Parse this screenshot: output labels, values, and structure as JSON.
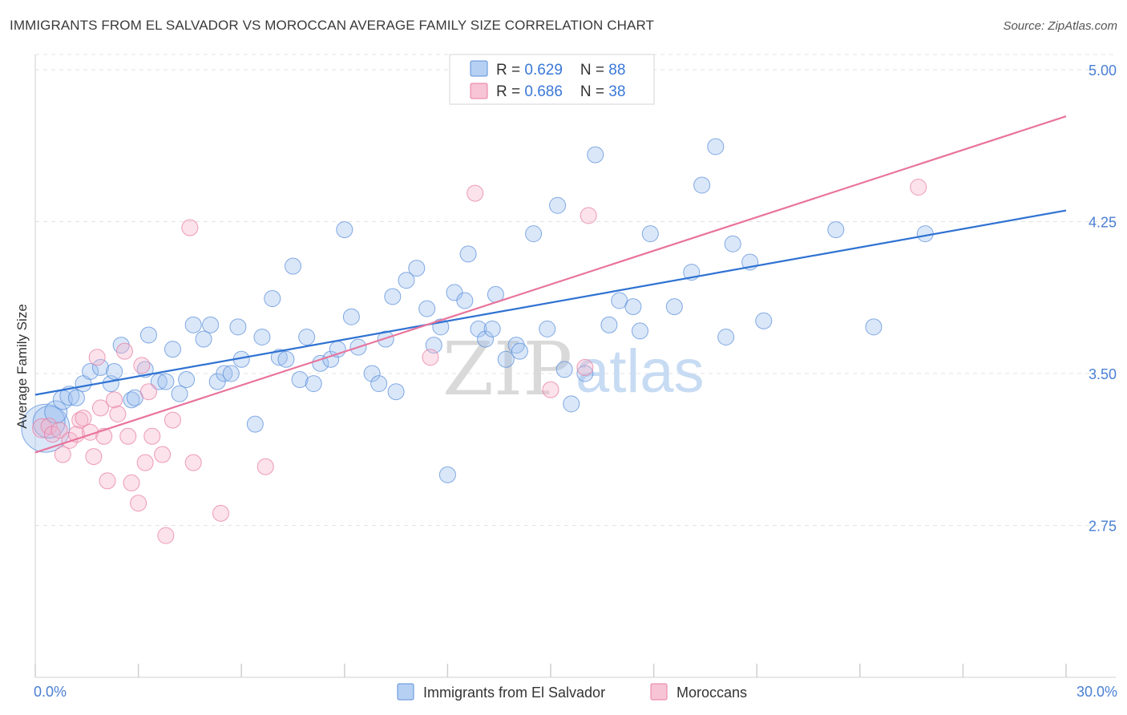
{
  "title": "IMMIGRANTS FROM EL SALVADOR VS MOROCCAN AVERAGE FAMILY SIZE CORRELATION CHART",
  "source": "Source: ZipAtlas.com",
  "watermark": {
    "zip": "ZIP",
    "atlas": "atlas"
  },
  "colors": {
    "blue": "#5b8fd9",
    "pink": "#e87ca2",
    "blue_line": "#2f72d2",
    "pink_line": "#e8749c",
    "grid": "#e3e3e3"
  },
  "legend": {
    "rows": [
      {
        "series": "blue",
        "r_label": "R = ",
        "r_value": "0.629",
        "n_label": "N = ",
        "n_value": "88"
      },
      {
        "series": "pink",
        "r_label": "R = ",
        "r_value": "0.686",
        "n_label": "N = ",
        "n_value": "38"
      }
    ]
  },
  "chart_data": {
    "type": "scatter",
    "title": "IMMIGRANTS FROM EL SALVADOR VS MOROCCAN AVERAGE FAMILY SIZE CORRELATION CHART",
    "xlabel": "",
    "ylabel": "Average Family Size",
    "xlim": [
      0,
      30
    ],
    "ylim": [
      2.0,
      5.075
    ],
    "x_tick_labels": [
      "0.0%",
      "30.0%"
    ],
    "y_ticks": [
      2.75,
      3.5,
      4.25,
      5.0
    ],
    "y_tick_labels": [
      "2.75",
      "3.50",
      "4.25",
      "5.00"
    ],
    "grid": true,
    "legend_position": "top-center",
    "series": [
      {
        "name": "Immigrants from El Salvador",
        "color": "#5b8fd9",
        "trend": {
          "x": [
            0,
            30
          ],
          "y": [
            3.395,
            4.305
          ]
        },
        "points": [
          [
            0.3,
            3.23,
            30
          ],
          [
            0.4,
            3.26,
            20
          ],
          [
            0.6,
            3.31,
            14
          ],
          [
            0.8,
            3.37,
            12
          ],
          [
            1.0,
            3.39,
            12
          ],
          [
            1.2,
            3.38,
            10
          ],
          [
            1.4,
            3.45,
            10
          ],
          [
            1.6,
            3.51,
            10
          ],
          [
            1.9,
            3.53,
            10
          ],
          [
            2.2,
            3.45,
            10
          ],
          [
            2.3,
            3.51,
            10
          ],
          [
            2.5,
            3.64,
            10
          ],
          [
            2.8,
            3.37,
            10
          ],
          [
            2.9,
            3.38,
            10
          ],
          [
            3.2,
            3.52,
            10
          ],
          [
            3.3,
            3.69,
            10
          ],
          [
            3.6,
            3.46,
            10
          ],
          [
            3.8,
            3.46,
            10
          ],
          [
            4.0,
            3.62,
            10
          ],
          [
            4.2,
            3.4,
            10
          ],
          [
            4.4,
            3.47,
            10
          ],
          [
            4.6,
            3.74,
            10
          ],
          [
            4.9,
            3.67,
            10
          ],
          [
            5.1,
            3.74,
            10
          ],
          [
            5.3,
            3.46,
            10
          ],
          [
            5.5,
            3.5,
            10
          ],
          [
            5.7,
            3.5,
            10
          ],
          [
            5.9,
            3.73,
            10
          ],
          [
            6.0,
            3.57,
            10
          ],
          [
            6.4,
            3.25,
            10
          ],
          [
            6.6,
            3.68,
            10
          ],
          [
            6.9,
            3.87,
            10
          ],
          [
            7.1,
            3.58,
            10
          ],
          [
            7.3,
            3.57,
            10
          ],
          [
            7.5,
            4.03,
            10
          ],
          [
            7.7,
            3.47,
            10
          ],
          [
            7.9,
            3.68,
            10
          ],
          [
            8.1,
            3.45,
            10
          ],
          [
            8.3,
            3.55,
            10
          ],
          [
            8.6,
            3.57,
            10
          ],
          [
            8.8,
            3.62,
            10
          ],
          [
            9.0,
            4.21,
            10
          ],
          [
            9.2,
            3.78,
            10
          ],
          [
            9.4,
            3.63,
            10
          ],
          [
            9.8,
            3.5,
            10
          ],
          [
            10.0,
            3.45,
            10
          ],
          [
            10.2,
            3.67,
            10
          ],
          [
            10.4,
            3.88,
            10
          ],
          [
            10.5,
            3.41,
            10
          ],
          [
            10.8,
            3.96,
            10
          ],
          [
            11.1,
            4.02,
            10
          ],
          [
            11.4,
            3.82,
            10
          ],
          [
            11.6,
            3.64,
            10
          ],
          [
            11.8,
            3.73,
            10
          ],
          [
            12.0,
            3.0,
            10
          ],
          [
            12.2,
            3.9,
            10
          ],
          [
            12.5,
            3.86,
            10
          ],
          [
            12.6,
            4.09,
            10
          ],
          [
            12.9,
            3.72,
            10
          ],
          [
            13.1,
            3.67,
            10
          ],
          [
            13.3,
            3.72,
            10
          ],
          [
            13.4,
            3.89,
            10
          ],
          [
            13.7,
            3.57,
            10
          ],
          [
            14.0,
            3.64,
            10
          ],
          [
            14.1,
            3.61,
            10
          ],
          [
            14.5,
            4.19,
            10
          ],
          [
            14.9,
            3.72,
            10
          ],
          [
            15.2,
            4.33,
            10
          ],
          [
            15.4,
            3.52,
            10
          ],
          [
            15.6,
            3.35,
            10
          ],
          [
            16.0,
            3.5,
            10
          ],
          [
            16.3,
            4.58,
            10
          ],
          [
            16.7,
            3.74,
            10
          ],
          [
            17.0,
            3.86,
            10
          ],
          [
            17.4,
            3.83,
            10
          ],
          [
            17.6,
            3.71,
            10
          ],
          [
            17.9,
            4.19,
            10
          ],
          [
            18.6,
            3.83,
            10
          ],
          [
            19.1,
            4.0,
            10
          ],
          [
            19.4,
            4.43,
            10
          ],
          [
            19.8,
            4.62,
            10
          ],
          [
            20.1,
            3.68,
            10
          ],
          [
            20.3,
            4.14,
            10
          ],
          [
            20.8,
            4.05,
            10
          ],
          [
            21.2,
            3.76,
            10
          ],
          [
            23.3,
            4.21,
            10
          ],
          [
            24.4,
            3.73,
            10
          ],
          [
            25.9,
            4.19,
            10
          ]
        ]
      },
      {
        "name": "Moroccans",
        "color": "#e87ca2",
        "trend": {
          "x": [
            0,
            30
          ],
          "y": [
            3.11,
            4.77
          ]
        },
        "points": [
          [
            0.2,
            3.23,
            12
          ],
          [
            0.4,
            3.24,
            10
          ],
          [
            0.5,
            3.2,
            10
          ],
          [
            0.7,
            3.22,
            10
          ],
          [
            0.8,
            3.1,
            10
          ],
          [
            1.0,
            3.17,
            10
          ],
          [
            1.2,
            3.2,
            10
          ],
          [
            1.3,
            3.27,
            10
          ],
          [
            1.4,
            3.28,
            10
          ],
          [
            1.6,
            3.21,
            10
          ],
          [
            1.7,
            3.09,
            10
          ],
          [
            1.8,
            3.58,
            10
          ],
          [
            1.9,
            3.33,
            10
          ],
          [
            2.0,
            3.19,
            10
          ],
          [
            2.1,
            2.97,
            10
          ],
          [
            2.3,
            3.37,
            10
          ],
          [
            2.4,
            3.3,
            10
          ],
          [
            2.6,
            3.61,
            10
          ],
          [
            2.7,
            3.19,
            10
          ],
          [
            2.8,
            2.96,
            10
          ],
          [
            3.0,
            2.86,
            10
          ],
          [
            3.2,
            3.06,
            10
          ],
          [
            3.3,
            3.41,
            10
          ],
          [
            3.4,
            3.19,
            10
          ],
          [
            3.7,
            3.1,
            10
          ],
          [
            3.8,
            2.7,
            10
          ],
          [
            4.0,
            3.27,
            10
          ],
          [
            4.5,
            4.22,
            10
          ],
          [
            4.6,
            3.06,
            10
          ],
          [
            5.4,
            2.81,
            10
          ],
          [
            6.7,
            3.04,
            10
          ],
          [
            11.5,
            3.58,
            10
          ],
          [
            12.8,
            4.39,
            10
          ],
          [
            15.0,
            3.42,
            10
          ],
          [
            16.0,
            3.53,
            10
          ],
          [
            16.1,
            4.28,
            10
          ],
          [
            25.7,
            4.42,
            10
          ],
          [
            3.1,
            3.54,
            10
          ]
        ]
      }
    ]
  },
  "bottom_legend": [
    {
      "series": "blue",
      "label": "Immigrants from El Salvador"
    },
    {
      "series": "pink",
      "label": "Moroccans"
    }
  ]
}
